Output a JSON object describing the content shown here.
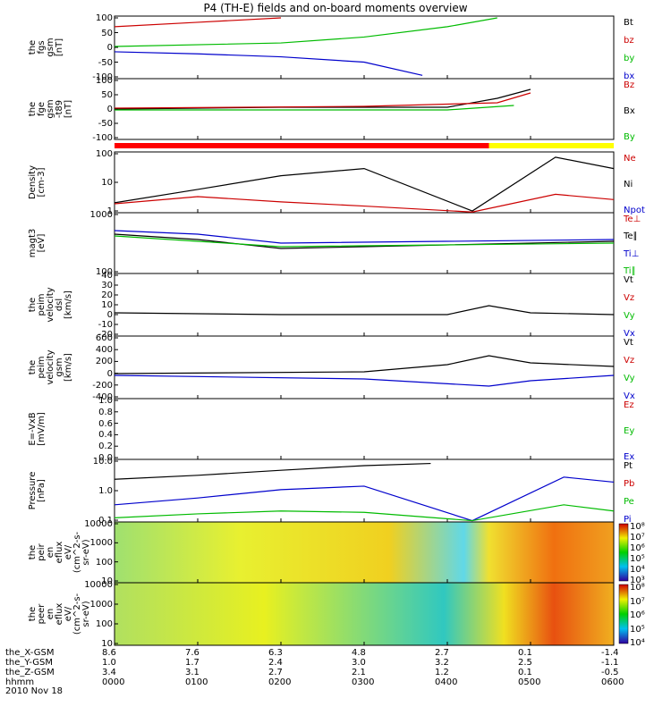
{
  "title": "P4 (TH-E) fields and on-board moments overview",
  "date_label": "2010 Nov 18",
  "panels": [
    {
      "id": "p1",
      "ylabel": "the\nfgs\ngsm\n[nT]",
      "ticks": [
        "100",
        "50",
        "0",
        "-50",
        "-100"
      ],
      "legend": [
        {
          "text": "Bt",
          "color": "#000000"
        },
        {
          "text": "bz",
          "color": "#cc0000"
        },
        {
          "text": "by",
          "color": "#00bb00"
        },
        {
          "text": "bx",
          "color": "#0000cc"
        }
      ]
    },
    {
      "id": "p2",
      "ylabel": "the\nfge\ngsm\n-t89\n[nT]",
      "ticks": [
        "100",
        "50",
        "0",
        "-50",
        "-100"
      ],
      "legend": [
        {
          "text": "Bz",
          "color": "#cc0000"
        },
        {
          "text": "Bx",
          "color": "#000000"
        },
        {
          "text": "By",
          "color": "#00bb00"
        }
      ]
    },
    {
      "id": "p3",
      "ylabel": "Density\n[cm-3]",
      "ticks": [
        "100",
        "10",
        "1"
      ],
      "legend": [
        {
          "text": "Ne",
          "color": "#cc0000"
        },
        {
          "text": "Ni",
          "color": "#000000"
        },
        {
          "text": "Npot",
          "color": "#0000cc"
        }
      ]
    },
    {
      "id": "p4",
      "ylabel": "magt3\n[eV]",
      "ticks": [
        "1000",
        "100"
      ],
      "legend": [
        {
          "text": "Te⊥",
          "color": "#cc0000"
        },
        {
          "text": "Te∥",
          "color": "#000000"
        },
        {
          "text": "Ti⊥",
          "color": "#0000cc"
        },
        {
          "text": "Ti∥",
          "color": "#00bb00"
        }
      ]
    },
    {
      "id": "p5",
      "ylabel": "the\npeim\nvelocity\ndsl\n[km/s]",
      "ticks": [
        "40",
        "30",
        "20",
        "10",
        "0",
        "-10",
        "-20"
      ],
      "legend": [
        {
          "text": "Vt",
          "color": "#000000"
        },
        {
          "text": "Vz",
          "color": "#cc0000"
        },
        {
          "text": "Vy",
          "color": "#00bb00"
        },
        {
          "text": "Vx",
          "color": "#0000cc"
        }
      ]
    },
    {
      "id": "p6",
      "ylabel": "the\npeim\nvelocity\ngsm\n[km/s]",
      "ticks": [
        "600",
        "400",
        "200",
        "0",
        "-200",
        "-400"
      ],
      "legend": [
        {
          "text": "Vt",
          "color": "#000000"
        },
        {
          "text": "Vz",
          "color": "#cc0000"
        },
        {
          "text": "Vy",
          "color": "#00bb00"
        },
        {
          "text": "Vx",
          "color": "#0000cc"
        }
      ]
    },
    {
      "id": "p7",
      "ylabel": "E=-VxB\n[mV/m]",
      "ticks": [
        "1.0",
        "0.8",
        "0.6",
        "0.4",
        "0.2",
        "0.0"
      ],
      "legend": [
        {
          "text": "Ez",
          "color": "#cc0000"
        },
        {
          "text": "Ey",
          "color": "#00bb00"
        },
        {
          "text": "Ex",
          "color": "#0000cc"
        }
      ]
    },
    {
      "id": "p8",
      "ylabel": "Pressure\n[nPa]",
      "ticks": [
        "10.0",
        "1.0",
        "0.1"
      ],
      "legend": [
        {
          "text": "Pt",
          "color": "#000000"
        },
        {
          "text": "Pb",
          "color": "#cc0000"
        },
        {
          "text": "Pe",
          "color": "#00bb00"
        },
        {
          "text": "Pi",
          "color": "#0000cc"
        }
      ]
    },
    {
      "id": "p9",
      "ylabel": "the\npeir\nen\neflux\neV/\n(cm^2-s-\nsr-eV)",
      "ticks": [
        "10000",
        "1000",
        "100",
        "10"
      ],
      "colorbar": [
        "10⁸",
        "10⁷",
        "10⁶",
        "10⁵",
        "10⁴",
        "10³"
      ]
    },
    {
      "id": "p10",
      "ylabel": "the\npeer\nen\neflux\neV/\n(cm^2-s-\nsr-eV)",
      "ticks": [
        "10000",
        "1000",
        "100",
        "10"
      ],
      "colorbar": [
        "10⁸",
        "10⁷",
        "10⁶",
        "10⁵",
        "10⁴"
      ]
    }
  ],
  "bottom_axis": {
    "row_labels": [
      "the_X-GSM",
      "the_Y-GSM",
      "the_Z-GSM",
      "hhmm"
    ],
    "x": [
      {
        "X": "8.6",
        "Y": "1.0",
        "Z": "3.4",
        "t": "0000"
      },
      {
        "X": "7.6",
        "Y": "1.7",
        "Z": "3.1",
        "t": "0100"
      },
      {
        "X": "6.3",
        "Y": "2.4",
        "Z": "2.7",
        "t": "0200"
      },
      {
        "X": "4.8",
        "Y": "3.0",
        "Z": "2.1",
        "t": "0300"
      },
      {
        "X": "2.7",
        "Y": "3.2",
        "Z": "1.2",
        "t": "0400"
      },
      {
        "X": "0.1",
        "Y": "2.5",
        "Z": "0.1",
        "t": "0500"
      },
      {
        "X": "-1.4",
        "Y": "-1.1",
        "Z": "-0.5",
        "t": "0600"
      }
    ]
  },
  "chart_data": {
    "type": "line",
    "title": "P4 (TH-E) fields and on-board moments overview",
    "x_range": [
      "0000",
      "0600"
    ],
    "series_overview": {
      "fgs_Bx_nT": [
        [
          0,
          -15
        ],
        [
          1,
          -22
        ],
        [
          2,
          -32
        ],
        [
          3,
          -50
        ],
        [
          3.7,
          -95
        ]
      ],
      "fgs_By_nT": [
        [
          0,
          3
        ],
        [
          2,
          15
        ],
        [
          3,
          35
        ],
        [
          4,
          70
        ],
        [
          4.6,
          100
        ]
      ],
      "fgs_Bz_nT": [
        [
          0,
          70
        ],
        [
          1,
          85
        ],
        [
          2,
          100
        ]
      ],
      "density_Ni": [
        [
          0,
          1.1
        ],
        [
          1,
          4
        ],
        [
          2,
          15
        ],
        [
          3,
          30
        ],
        [
          4.3,
          0.5
        ],
        [
          5.3,
          90
        ],
        [
          6,
          30
        ]
      ],
      "density_Ne": [
        [
          0,
          1.0
        ],
        [
          1,
          2
        ],
        [
          2,
          1.2
        ],
        [
          3,
          0.8
        ],
        [
          4.3,
          0.45
        ],
        [
          5.3,
          2.5
        ],
        [
          6,
          1.5
        ]
      ],
      "pressure_Pt": [
        [
          0,
          2.0
        ],
        [
          1,
          3
        ],
        [
          2,
          5
        ],
        [
          3,
          8
        ],
        [
          3.8,
          10
        ]
      ],
      "pressure_Pi": [
        [
          0,
          0.15
        ],
        [
          1,
          0.3
        ],
        [
          2,
          0.7
        ],
        [
          3,
          1.0
        ],
        [
          4.3,
          0.03
        ],
        [
          5.4,
          2.5
        ],
        [
          6,
          1.5
        ]
      ],
      "pressure_Pe": [
        [
          0,
          0.04
        ],
        [
          1,
          0.06
        ],
        [
          2,
          0.08
        ],
        [
          3,
          0.07
        ],
        [
          4.3,
          0.03
        ],
        [
          5.4,
          0.15
        ],
        [
          6,
          0.08
        ]
      ]
    }
  }
}
